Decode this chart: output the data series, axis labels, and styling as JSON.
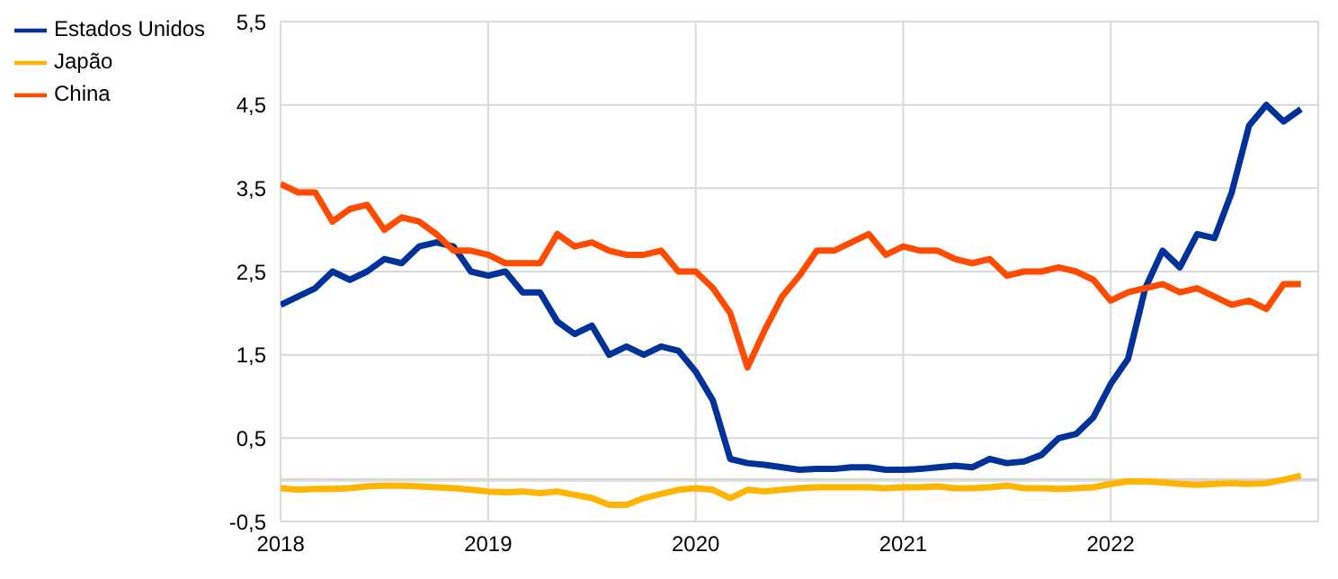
{
  "chart_data": {
    "type": "line",
    "x": [
      "2018-01",
      "2018-02",
      "2018-03",
      "2018-04",
      "2018-05",
      "2018-06",
      "2018-07",
      "2018-08",
      "2018-09",
      "2018-10",
      "2018-11",
      "2018-12",
      "2019-01",
      "2019-02",
      "2019-03",
      "2019-04",
      "2019-05",
      "2019-06",
      "2019-07",
      "2019-08",
      "2019-09",
      "2019-10",
      "2019-11",
      "2019-12",
      "2020-01",
      "2020-02",
      "2020-03",
      "2020-04",
      "2020-05",
      "2020-06",
      "2020-07",
      "2020-08",
      "2020-09",
      "2020-10",
      "2020-11",
      "2020-12",
      "2021-01",
      "2021-02",
      "2021-03",
      "2021-04",
      "2021-05",
      "2021-06",
      "2021-07",
      "2021-08",
      "2021-09",
      "2021-10",
      "2021-11",
      "2021-12",
      "2022-01",
      "2022-02",
      "2022-03",
      "2022-04",
      "2022-05",
      "2022-06",
      "2022-07",
      "2022-08",
      "2022-09",
      "2022-10",
      "2022-11",
      "2022-12"
    ],
    "series": [
      {
        "name": "Estados Unidos",
        "color": "#003299",
        "values": [
          2.1,
          2.2,
          2.3,
          2.5,
          2.4,
          2.5,
          2.65,
          2.6,
          2.8,
          2.85,
          2.8,
          2.5,
          2.45,
          2.5,
          2.25,
          2.25,
          1.9,
          1.75,
          1.85,
          1.5,
          1.6,
          1.5,
          1.6,
          1.55,
          1.3,
          0.95,
          0.25,
          0.2,
          0.18,
          0.15,
          0.12,
          0.13,
          0.13,
          0.15,
          0.15,
          0.12,
          0.12,
          0.13,
          0.15,
          0.17,
          0.15,
          0.25,
          0.2,
          0.22,
          0.3,
          0.5,
          0.55,
          0.75,
          1.15,
          1.45,
          2.3,
          2.75,
          2.55,
          2.95,
          2.9,
          3.45,
          4.25,
          4.5,
          4.3,
          4.45
        ]
      },
      {
        "name": "Japão",
        "color": "#ffb400",
        "values": [
          -0.1,
          -0.12,
          -0.11,
          -0.11,
          -0.1,
          -0.08,
          -0.07,
          -0.07,
          -0.08,
          -0.09,
          -0.1,
          -0.12,
          -0.14,
          -0.15,
          -0.14,
          -0.16,
          -0.14,
          -0.18,
          -0.22,
          -0.3,
          -0.3,
          -0.22,
          -0.17,
          -0.12,
          -0.1,
          -0.12,
          -0.22,
          -0.12,
          -0.14,
          -0.12,
          -0.1,
          -0.09,
          -0.09,
          -0.09,
          -0.09,
          -0.1,
          -0.09,
          -0.09,
          -0.08,
          -0.1,
          -0.1,
          -0.09,
          -0.07,
          -0.1,
          -0.1,
          -0.11,
          -0.1,
          -0.09,
          -0.05,
          -0.02,
          -0.02,
          -0.03,
          -0.05,
          -0.06,
          -0.05,
          -0.04,
          -0.05,
          -0.04,
          0,
          0.05
        ]
      },
      {
        "name": "China",
        "color": "#ff4b00",
        "values": [
          3.55,
          3.45,
          3.45,
          3.1,
          3.25,
          3.3,
          3.0,
          3.15,
          3.1,
          2.95,
          2.75,
          2.75,
          2.7,
          2.6,
          2.6,
          2.6,
          2.95,
          2.8,
          2.85,
          2.75,
          2.7,
          2.7,
          2.75,
          2.5,
          2.5,
          2.3,
          2.0,
          1.35,
          1.8,
          2.2,
          2.45,
          2.75,
          2.75,
          2.85,
          2.95,
          2.7,
          2.8,
          2.75,
          2.75,
          2.65,
          2.6,
          2.65,
          2.45,
          2.5,
          2.5,
          2.55,
          2.5,
          2.4,
          2.15,
          2.25,
          2.3,
          2.35,
          2.25,
          2.3,
          2.2,
          2.1,
          2.15,
          2.05,
          2.35,
          2.35
        ]
      }
    ],
    "xlim": [
      "2018-01",
      "2023-01"
    ],
    "xticks": [
      "2018",
      "2019",
      "2020",
      "2021",
      "2022"
    ],
    "ylim": [
      -0.5,
      5.5
    ],
    "yticks": [
      {
        "value": 5.5,
        "label": "5,5"
      },
      {
        "value": 4.5,
        "label": "4,5"
      },
      {
        "value": 3.5,
        "label": "3,5"
      },
      {
        "value": 2.5,
        "label": "2,5"
      },
      {
        "value": 1.5,
        "label": "1,5"
      },
      {
        "value": 0.5,
        "label": "0,5"
      },
      {
        "value": -0.5,
        "label": "-0,5"
      }
    ],
    "ref_lines": [
      {
        "axis": "y",
        "value": 0,
        "color": "#d9d9d9"
      }
    ],
    "grid": true,
    "legend": "top left",
    "marker": "none",
    "line_style": "solid"
  }
}
